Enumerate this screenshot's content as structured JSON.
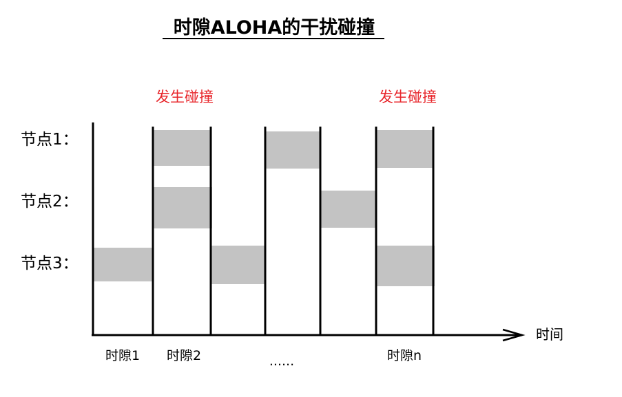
{
  "title": "时隙ALOHA的干扰碰撞",
  "collision_labels": [
    "发生碰撞",
    "发生碰撞"
  ],
  "nodes": [
    "节点1：",
    "节点2：",
    "节点3："
  ],
  "time_label": "时间",
  "slot_labels": [
    "时隙1",
    "时隙2",
    "......",
    "时隙n"
  ],
  "colors": {
    "frame": "#c3c3c3",
    "collision_text": "#e8262b",
    "lines": "#000000"
  },
  "transmissions": [
    {
      "node": "节点1：",
      "slots": [
        "时隙2",
        "slot 4",
        "时隙n"
      ]
    },
    {
      "node": "节点2：",
      "slots": [
        "时隙2",
        "slot 5"
      ]
    },
    {
      "node": "节点3：",
      "slots": [
        "时隙1",
        "slot 3",
        "时隙n"
      ]
    }
  ]
}
